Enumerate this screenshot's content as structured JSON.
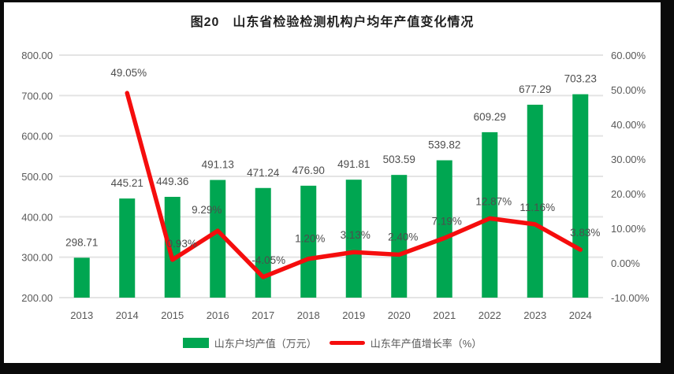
{
  "window": {
    "title": "图20　山东省检验检测机构户均年产值变化情况"
  },
  "chart_data": {
    "type": "bar+line",
    "title": "图20　山东省检验检测机构户均年产值变化情况",
    "categories": [
      "2013",
      "2014",
      "2015",
      "2016",
      "2017",
      "2018",
      "2019",
      "2020",
      "2021",
      "2022",
      "2023",
      "2024"
    ],
    "series": [
      {
        "name": "山东户均产值（万元）",
        "type": "bar",
        "axis": "left",
        "values": [
          298.71,
          445.21,
          449.36,
          491.13,
          471.24,
          476.9,
          491.81,
          503.59,
          539.82,
          609.29,
          677.29,
          703.23
        ],
        "labels": [
          "298.71",
          "445.21",
          "449.36",
          "491.13",
          "471.24",
          "476.90",
          "491.81",
          "503.59",
          "539.82",
          "609.29",
          "677.29",
          "703.23"
        ]
      },
      {
        "name": "山东年产值增长率（%）",
        "type": "line",
        "axis": "right",
        "values": [
          null,
          49.05,
          0.93,
          9.29,
          -4.05,
          1.2,
          3.13,
          2.4,
          7.19,
          12.87,
          11.16,
          3.83
        ],
        "labels": [
          "",
          "49.05%",
          "0.93%",
          "9.29%",
          "-4.05%",
          "1.20%",
          "3.13%",
          "2.40%",
          "7.19%",
          "12.87%",
          "11.16%",
          "3.83%"
        ]
      }
    ],
    "left_axis": {
      "min": 200,
      "max": 800,
      "step": 100,
      "tick_labels": [
        "800.00",
        "700.00",
        "600.00",
        "500.00",
        "400.00",
        "300.00",
        "200.00"
      ]
    },
    "right_axis": {
      "min": -10,
      "max": 60,
      "step": 10,
      "tick_labels": [
        "60.00%",
        "50.00%",
        "40.00%",
        "30.00%",
        "20.00%",
        "10.00%",
        "0.00%",
        "-10.00%"
      ]
    },
    "grid": "horizontal-only",
    "legend_position": "bottom"
  },
  "legend": {
    "items": [
      {
        "label": "山东户均产值（万元）",
        "swatch": "bar"
      },
      {
        "label": "山东年产值增长率（%）",
        "swatch": "line"
      }
    ]
  },
  "colors": {
    "bar_green": "#00A651",
    "line_red": "#F50D0D",
    "grid": "#E4E4E4",
    "axis_text": "#595959",
    "value_text": "#4D4D4D",
    "title_text": "#1F1F1F",
    "frame": "#0A0A0A",
    "background": "#FFFFFF"
  }
}
